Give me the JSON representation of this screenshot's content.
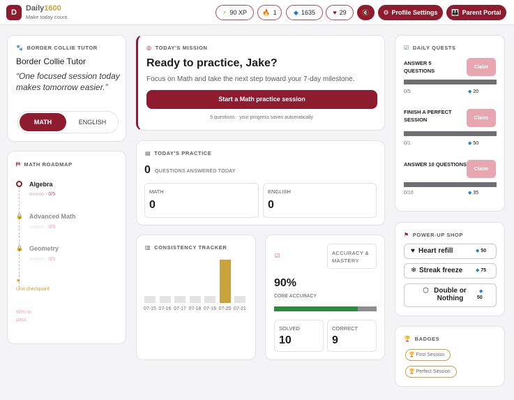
{
  "app": {
    "logo_letter": "D",
    "name": "Daily",
    "name_number": "1600",
    "tagline": "Make today count."
  },
  "header": {
    "xp": "90 XP",
    "streak": "1",
    "gems": "1635",
    "hearts": "29",
    "profile_label": "Profile Settings",
    "parent_label": "Parent Portal",
    "icons": {
      "xp": "lightning-icon",
      "streak": "flame-icon",
      "gems": "gem-icon",
      "hearts": "heart-icon",
      "sound": "speaker-icon",
      "profile": "gear-icon",
      "parent": "family-icon"
    }
  },
  "tutor": {
    "title": "BORDER COLLIE TUTOR",
    "name": "Border Collie Tutor",
    "quote": "“One focused session today makes tomorrow easier.”",
    "subjects": [
      "MATH",
      "ENGLISH"
    ],
    "active_subject": "MATH"
  },
  "roadmap": {
    "title": "MATH ROADMAP",
    "topics": [
      {
        "name": "Algebra",
        "progress": "○○○○○ · 0/5",
        "status": "active"
      },
      {
        "name": "Advanced Math",
        "progress": "○○○○○ · 0/5",
        "status": "locked"
      },
      {
        "name": "Geometry",
        "progress": "○○○○○ · 0/5",
        "status": "locked"
      }
    ],
    "checkpoint_label": "Unit checkpoint",
    "checkpoint_pass": "80% to pass"
  },
  "mission": {
    "title": "TODAY'S MISSION",
    "heading": "Ready to practice, Jake?",
    "subtext": "Focus on Math and take the next step toward your 7-day milestone.",
    "button": "Start a Math practice session",
    "footnote": "5 questions · your progress saves automatically"
  },
  "practice": {
    "title": "TODAY'S PRACTICE",
    "count": "0",
    "count_label": "QUESTIONS ANSWERED TODAY",
    "math_label": "MATH",
    "math_value": "0",
    "english_label": "ENGLISH",
    "english_value": "0"
  },
  "consistency": {
    "title": "CONSISTENCY TRACKER"
  },
  "chart_data": {
    "type": "bar",
    "categories": [
      "07-15",
      "07-16",
      "07-17",
      "07-18",
      "07-19",
      "07-20",
      "07-21"
    ],
    "values": [
      0,
      0,
      0,
      0,
      0,
      5,
      0
    ],
    "highlight_color": "#c9a23e",
    "base_color": "#e3e3e6"
  },
  "accuracy": {
    "tab": "ACCURACY & MASTERY",
    "value": "90%",
    "label": "CORE ACCURACY",
    "fraction": 0.9,
    "solved_label": "SOLVED",
    "solved_value": "10",
    "correct_label": "CORRECT",
    "correct_value": "9"
  },
  "quests": {
    "title": "DAILY QUESTS",
    "claim_label": "Claim",
    "items": [
      {
        "name": "ANSWER 5 QUESTIONS",
        "progress": "0/5",
        "reward": "20"
      },
      {
        "name": "FINISH A PERFECT SESSION",
        "progress": "0/1",
        "reward": "50"
      },
      {
        "name": "ANSWER 10 QUESTIONS",
        "progress": "0/10",
        "reward": "35"
      }
    ]
  },
  "shop": {
    "title": "POWER-UP SHOP",
    "items": [
      {
        "name": "Heart refill",
        "cost": "50",
        "icon": "heart-icon"
      },
      {
        "name": "Streak freeze",
        "cost": "75",
        "icon": "snowflake-icon"
      },
      {
        "name": "Double or Nothing",
        "cost": "50",
        "icon": "dice-icon"
      }
    ]
  },
  "badges": {
    "title": "BADGES",
    "items": [
      "First Session",
      "Perfect Session"
    ]
  }
}
